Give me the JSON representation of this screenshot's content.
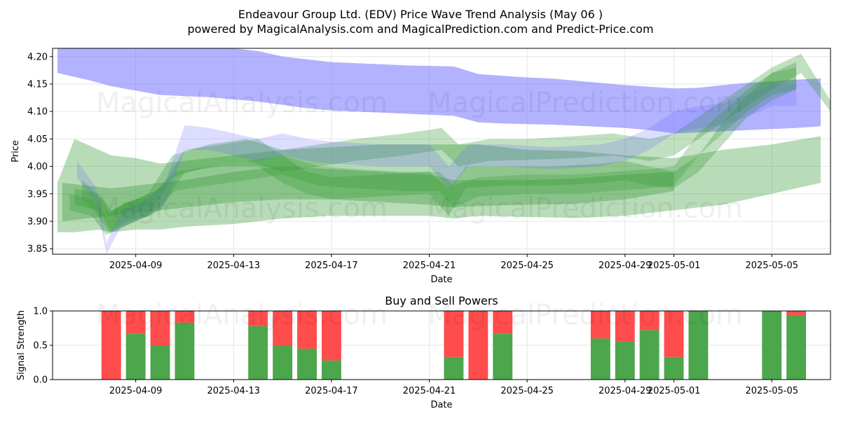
{
  "title_line1": "Endeavour Group Ltd. (EDV) Price Wave Trend Analysis (May 06 )",
  "title_line2": "powered by MagicalAnalysis.com and MagicalPrediction.com and Predict-Price.com",
  "watermarks": [
    "MagicalAnalysis.com",
    "MagicalPrediction.com"
  ],
  "colors": {
    "blue_band": "#6666ff",
    "green_band": "#339933",
    "buy": "#4ca64c",
    "sell": "#ff4c4c",
    "grid": "#e6e6e6"
  },
  "chart_data": [
    {
      "type": "area",
      "title": "",
      "xlabel": "Date",
      "ylabel": "Price",
      "ylim": [
        3.84,
        4.215
      ],
      "x_day_range": [
        -3.4,
        28.4
      ],
      "x_ticks": [
        {
          "day": 0,
          "label": "2025-04-09"
        },
        {
          "day": 4,
          "label": "2025-04-13"
        },
        {
          "day": 8,
          "label": "2025-04-17"
        },
        {
          "day": 12,
          "label": "2025-04-21"
        },
        {
          "day": 16,
          "label": "2025-04-25"
        },
        {
          "day": 20,
          "label": "2025-04-29"
        },
        {
          "day": 22,
          "label": "2025-05-01"
        },
        {
          "day": 26,
          "label": "2025-05-05"
        }
      ],
      "y_ticks": [
        3.85,
        3.9,
        3.95,
        4.0,
        4.05,
        4.1,
        4.15,
        4.2
      ],
      "y_tick_labels": [
        "3.85",
        "3.90",
        "3.95",
        "4.00",
        "4.05",
        "4.10",
        "4.15",
        "4.20"
      ],
      "series": [
        {
          "name": "blue_trend_band",
          "color": "blue",
          "opacity": 0.5,
          "x": [
            -3.2,
            -2,
            -1,
            0,
            1,
            2,
            3,
            4,
            5,
            6,
            7,
            8,
            9,
            10,
            11,
            12,
            13,
            14,
            15,
            16,
            17,
            18,
            19,
            20,
            21,
            22,
            23,
            24,
            25,
            26,
            27,
            28
          ],
          "upper": [
            4.22,
            4.22,
            4.22,
            4.22,
            4.22,
            4.22,
            4.22,
            4.22,
            4.21,
            4.2,
            4.195,
            4.19,
            4.188,
            4.186,
            4.184,
            4.183,
            4.182,
            4.168,
            4.165,
            4.162,
            4.16,
            4.156,
            4.152,
            4.148,
            4.145,
            4.142,
            4.143,
            4.148,
            4.152,
            4.155,
            4.158,
            4.16
          ],
          "lower": [
            4.17,
            4.158,
            4.146,
            4.138,
            4.13,
            4.128,
            4.126,
            4.122,
            4.118,
            4.112,
            4.106,
            4.102,
            4.1,
            4.098,
            4.096,
            4.094,
            4.092,
            4.08,
            4.078,
            4.077,
            4.076,
            4.074,
            4.072,
            4.07,
            4.066,
            4.06,
            4.062,
            4.064,
            4.066,
            4.068,
            4.07,
            4.073
          ]
        },
        {
          "name": "green_band_1",
          "color": "green",
          "opacity": 0.35,
          "x": [
            -3.2,
            -2.5,
            -1.5,
            -1,
            0,
            1,
            2,
            4,
            6,
            8,
            10,
            12,
            13,
            14,
            16,
            18,
            20,
            22,
            24,
            26,
            28
          ],
          "upper": [
            3.97,
            4.05,
            4.03,
            4.02,
            4.015,
            4.005,
            4.01,
            4.02,
            4.03,
            4.035,
            4.04,
            4.04,
            4.04,
            4.04,
            4.03,
            4.028,
            4.02,
            4.015,
            4.03,
            4.04,
            4.055
          ],
          "lower": [
            3.88,
            3.88,
            3.885,
            3.88,
            3.885,
            3.885,
            3.89,
            3.895,
            3.905,
            3.91,
            3.91,
            3.91,
            3.905,
            3.91,
            3.908,
            3.906,
            3.91,
            3.92,
            3.93,
            3.95,
            3.97
          ]
        },
        {
          "name": "green_band_2",
          "color": "green",
          "opacity": 0.35,
          "x": [
            -3,
            -2,
            -1,
            0,
            1,
            2,
            4,
            6,
            8,
            10,
            12,
            13,
            14,
            16,
            18,
            20,
            22
          ],
          "upper": [
            3.97,
            3.965,
            3.96,
            3.965,
            3.97,
            3.975,
            3.99,
            4.0,
            3.995,
            3.99,
            3.985,
            3.975,
            3.975,
            3.975,
            3.978,
            3.985,
            3.99
          ],
          "lower": [
            3.9,
            3.905,
            3.91,
            3.915,
            3.92,
            3.925,
            3.935,
            3.94,
            3.94,
            3.935,
            3.93,
            3.925,
            3.928,
            3.93,
            3.932,
            3.94,
            3.955
          ]
        },
        {
          "name": "green_wave_1",
          "color": "green",
          "opacity": 0.3,
          "x": [
            -2.5,
            -1.5,
            -1,
            0,
            1,
            2,
            3.5,
            5,
            6,
            7,
            8,
            10,
            12,
            12.8,
            13.5,
            15,
            17,
            19,
            20,
            21,
            22,
            23,
            24,
            25,
            26,
            27
          ],
          "upper": [
            3.96,
            3.95,
            3.92,
            3.94,
            3.96,
            4.03,
            4.04,
            4.05,
            4.02,
            3.99,
            3.98,
            3.985,
            3.99,
            3.96,
            4.0,
            4.0,
            4.0,
            4.005,
            4.01,
            4.0,
            3.99,
            4.02,
            4.08,
            4.13,
            4.17,
            4.19
          ],
          "lower": [
            3.93,
            3.92,
            3.88,
            3.9,
            3.92,
            3.99,
            4.0,
            4.0,
            3.97,
            3.95,
            3.94,
            3.945,
            3.95,
            3.91,
            3.96,
            3.965,
            3.965,
            3.97,
            3.975,
            3.965,
            3.96,
            3.99,
            4.04,
            4.09,
            4.12,
            4.14
          ]
        },
        {
          "name": "green_wave_2",
          "color": "green",
          "opacity": 0.3,
          "x": [
            -2.7,
            -1.8,
            -1.2,
            -0.5,
            0.5,
            1.5,
            3,
            4.5,
            6,
            7.5,
            9,
            11,
            12.5,
            13.2,
            14.5,
            16,
            18,
            19.5,
            21,
            22,
            23,
            24,
            25,
            26,
            27.2,
            28.4
          ],
          "upper": [
            3.95,
            3.94,
            3.91,
            3.93,
            3.95,
            4.02,
            4.04,
            4.05,
            4.03,
            4.04,
            4.05,
            4.06,
            4.07,
            4.04,
            4.05,
            4.05,
            4.055,
            4.06,
            4.05,
            4.06,
            4.09,
            4.12,
            4.15,
            4.18,
            4.205,
            4.12
          ],
          "lower": [
            3.92,
            3.91,
            3.875,
            3.89,
            3.91,
            3.98,
            4.0,
            4.01,
            3.99,
            4.0,
            4.01,
            4.02,
            4.03,
            4.0,
            4.01,
            4.012,
            4.015,
            4.02,
            4.01,
            4.02,
            4.05,
            4.08,
            4.11,
            4.14,
            4.17,
            4.1
          ]
        },
        {
          "name": "blue_wave_1",
          "color": "blue",
          "opacity": 0.22,
          "x": [
            -2.4,
            -1.6,
            -1.2,
            -0.6,
            0.4,
            1.2,
            2,
            3,
            4,
            5,
            6,
            7,
            8,
            10,
            12,
            12.8,
            13.6,
            15,
            17,
            19,
            20,
            21,
            22,
            23,
            24,
            25,
            26,
            27
          ],
          "upper": [
            4.01,
            3.96,
            3.86,
            3.92,
            3.94,
            3.97,
            4.075,
            4.07,
            4.06,
            4.05,
            4.06,
            4.05,
            4.045,
            4.04,
            4.04,
            4.0,
            4.04,
            4.04,
            4.035,
            4.04,
            4.05,
            4.07,
            4.1,
            4.11,
            4.115,
            4.13,
            4.15,
            4.15
          ],
          "lower": [
            3.98,
            3.93,
            3.84,
            3.89,
            3.91,
            3.93,
            4.03,
            4.03,
            4.02,
            4.01,
            4.02,
            4.01,
            4.005,
            4.0,
            4.0,
            3.96,
            4.0,
            4.0,
            3.995,
            4.0,
            4.01,
            4.03,
            4.06,
            4.07,
            4.075,
            4.09,
            4.11,
            4.11
          ]
        },
        {
          "name": "green_wave_3",
          "color": "green",
          "opacity": 0.28,
          "x": [
            -2.2,
            -1.6,
            -1.1,
            -0.4,
            0.6,
            1.6,
            3,
            4.5,
            6,
            7.5,
            9,
            11,
            12.4,
            13,
            14,
            16,
            18,
            19.5,
            21,
            22,
            23,
            24,
            25,
            26,
            27
          ],
          "upper": [
            3.975,
            3.95,
            3.915,
            3.935,
            3.945,
            3.99,
            4.0,
            4.01,
            4.02,
            4.0,
            3.995,
            3.99,
            3.99,
            3.965,
            3.98,
            3.985,
            3.985,
            3.99,
            3.995,
            4.0,
            4.06,
            4.1,
            4.14,
            4.17,
            4.18
          ],
          "lower": [
            3.94,
            3.915,
            3.88,
            3.9,
            3.91,
            3.955,
            3.965,
            3.975,
            3.985,
            3.965,
            3.96,
            3.955,
            3.955,
            3.925,
            3.945,
            3.95,
            3.95,
            3.955,
            3.96,
            3.965,
            4.02,
            4.06,
            4.1,
            4.13,
            4.14
          ]
        }
      ]
    },
    {
      "type": "bar",
      "title": "Buy and Sell Powers",
      "xlabel": "Date",
      "ylabel": "Signal Strength",
      "ylim": [
        0,
        1
      ],
      "x_day_range": [
        -3.4,
        28.4
      ],
      "x_ticks": [
        {
          "day": 0,
          "label": "2025-04-09"
        },
        {
          "day": 4,
          "label": "2025-04-13"
        },
        {
          "day": 8,
          "label": "2025-04-17"
        },
        {
          "day": 12,
          "label": "2025-04-21"
        },
        {
          "day": 16,
          "label": "2025-04-25"
        },
        {
          "day": 20,
          "label": "2025-04-29"
        },
        {
          "day": 22,
          "label": "2025-05-01"
        },
        {
          "day": 26,
          "label": "2025-05-05"
        }
      ],
      "y_ticks": [
        0.0,
        0.5,
        1.0
      ],
      "y_tick_labels": [
        "0.0",
        "0.5",
        "1.0"
      ],
      "days": [
        -1,
        0,
        1,
        2,
        5,
        6,
        7,
        8,
        13,
        14,
        15,
        19,
        20,
        21,
        22,
        23,
        26,
        27
      ],
      "buy": [
        0.0,
        0.67,
        0.5,
        0.83,
        0.78,
        0.5,
        0.45,
        0.28,
        0.33,
        0.0,
        0.67,
        0.6,
        0.56,
        0.72,
        0.33,
        1.0,
        1.0,
        0.94
      ],
      "sell": [
        1.0,
        0.33,
        0.5,
        0.17,
        0.22,
        0.5,
        0.55,
        0.72,
        0.67,
        1.0,
        0.33,
        0.4,
        0.44,
        0.28,
        0.67,
        0.0,
        0.0,
        0.06
      ]
    }
  ]
}
